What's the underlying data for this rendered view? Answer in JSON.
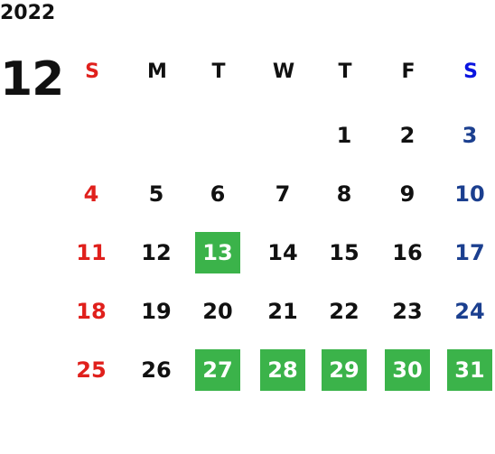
{
  "year": "2022",
  "month": "12",
  "weekdays": [
    "S",
    "M",
    "T",
    "W",
    "T",
    "F",
    "S"
  ],
  "weeks": [
    [
      null,
      null,
      null,
      null,
      {
        "day": 1,
        "highlight": false
      },
      {
        "day": 2,
        "highlight": false
      },
      {
        "day": 3,
        "highlight": false
      }
    ],
    [
      {
        "day": 4,
        "highlight": false
      },
      {
        "day": 5,
        "highlight": false
      },
      {
        "day": 6,
        "highlight": false
      },
      {
        "day": 7,
        "highlight": false
      },
      {
        "day": 8,
        "highlight": false
      },
      {
        "day": 9,
        "highlight": false
      },
      {
        "day": 10,
        "highlight": false
      }
    ],
    [
      {
        "day": 11,
        "highlight": false
      },
      {
        "day": 12,
        "highlight": false
      },
      {
        "day": 13,
        "highlight": true
      },
      {
        "day": 14,
        "highlight": false
      },
      {
        "day": 15,
        "highlight": false
      },
      {
        "day": 16,
        "highlight": false
      },
      {
        "day": 17,
        "highlight": false
      }
    ],
    [
      {
        "day": 18,
        "highlight": false
      },
      {
        "day": 19,
        "highlight": false
      },
      {
        "day": 20,
        "highlight": false
      },
      {
        "day": 21,
        "highlight": false
      },
      {
        "day": 22,
        "highlight": false
      },
      {
        "day": 23,
        "highlight": false
      },
      {
        "day": 24,
        "highlight": false
      }
    ],
    [
      {
        "day": 25,
        "highlight": false
      },
      {
        "day": 26,
        "highlight": false
      },
      {
        "day": 27,
        "highlight": true
      },
      {
        "day": 28,
        "highlight": true
      },
      {
        "day": 29,
        "highlight": true
      },
      {
        "day": 30,
        "highlight": true
      },
      {
        "day": 31,
        "highlight": true
      }
    ]
  ]
}
